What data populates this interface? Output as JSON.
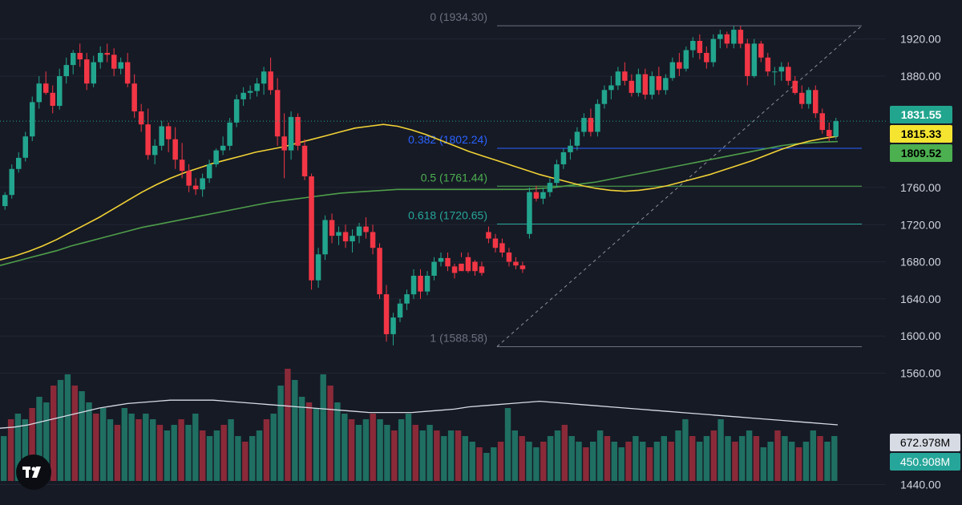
{
  "colors": {
    "background": "#161a25",
    "grid": "#222633",
    "up": "#22a58e",
    "down": "#f23645",
    "up_volume": "#1f6f62",
    "down_volume": "#8a2a39",
    "ma_fast": "#f2d235",
    "ma_slow": "#4e9e4a",
    "volume_ma": "#d6dbe4",
    "fib_0382": "#2962ff",
    "fib_0500": "#4caf50",
    "fib_0618": "#26a69a",
    "fib_extreme": "#6b7080",
    "axis_text": "#d1d4dc"
  },
  "chart_data": {
    "type": "candlestick",
    "y_axis": {
      "ticks": [
        1440,
        1560,
        1600,
        1640,
        1680,
        1720,
        1760,
        1880,
        1920
      ],
      "tick_labels": [
        "1440.00",
        "1560.00",
        "1600.00",
        "1640.00",
        "1680.00",
        "1720.00",
        "1760.00",
        "1880.00",
        "1920.00"
      ],
      "range": [
        1418,
        1962
      ]
    },
    "fibonacci": [
      {
        "ratio": "0",
        "price": 1934.3,
        "label": "0 (1934.30)",
        "color": "#6b7080"
      },
      {
        "ratio": "0.382",
        "price": 1802.24,
        "label": "0.382 (1802.24)",
        "color": "#2962ff"
      },
      {
        "ratio": "0.5",
        "price": 1761.44,
        "label": "0.5 (1761.44)",
        "color": "#4caf50"
      },
      {
        "ratio": "0.618",
        "price": 1720.65,
        "label": "0.618 (1720.65)",
        "color": "#26a69a"
      },
      {
        "ratio": "1",
        "price": 1588.58,
        "label": "1 (1588.58)",
        "color": "#6b7080"
      }
    ],
    "price_tags": [
      {
        "value": 1831.55,
        "label": "1831.55",
        "color": "#22a58e",
        "text_color": "#ffffff"
      },
      {
        "value": 1815.33,
        "label": "1815.33",
        "color": "#f5e430",
        "text_color": "#000000"
      },
      {
        "value": 1809.52,
        "label": "1809.52",
        "color": "#4caf50",
        "text_color": "#000000"
      }
    ],
    "volume_tags": [
      {
        "label": "672.978M",
        "color": "#d6dbe4",
        "text_color": "#000000"
      },
      {
        "label": "450.908M",
        "color": "#26a69a",
        "text_color": "#ffffff"
      }
    ],
    "candles": [
      [
        1740,
        1755,
        1736,
        1752
      ],
      [
        1752,
        1785,
        1748,
        1780
      ],
      [
        1780,
        1798,
        1776,
        1792
      ],
      [
        1792,
        1820,
        1788,
        1815
      ],
      [
        1815,
        1858,
        1810,
        1852
      ],
      [
        1852,
        1880,
        1845,
        1872
      ],
      [
        1872,
        1885,
        1860,
        1862
      ],
      [
        1862,
        1870,
        1840,
        1848
      ],
      [
        1848,
        1888,
        1844,
        1880
      ],
      [
        1880,
        1900,
        1872,
        1892
      ],
      [
        1892,
        1908,
        1882,
        1905
      ],
      [
        1905,
        1915,
        1890,
        1898
      ],
      [
        1898,
        1905,
        1865,
        1872
      ],
      [
        1872,
        1902,
        1868,
        1895
      ],
      [
        1895,
        1912,
        1888,
        1905
      ],
      [
        1905,
        1915,
        1895,
        1903
      ],
      [
        1903,
        1910,
        1880,
        1888
      ],
      [
        1888,
        1900,
        1882,
        1895
      ],
      [
        1895,
        1905,
        1868,
        1872
      ],
      [
        1872,
        1882,
        1835,
        1842
      ],
      [
        1842,
        1850,
        1820,
        1828
      ],
      [
        1828,
        1845,
        1790,
        1795
      ],
      [
        1795,
        1812,
        1785,
        1805
      ],
      [
        1805,
        1832,
        1800,
        1826
      ],
      [
        1826,
        1830,
        1798,
        1812
      ],
      [
        1812,
        1825,
        1780,
        1790
      ],
      [
        1790,
        1808,
        1770,
        1778
      ],
      [
        1778,
        1785,
        1755,
        1762
      ],
      [
        1762,
        1770,
        1752,
        1758
      ],
      [
        1758,
        1775,
        1750,
        1770
      ],
      [
        1770,
        1790,
        1765,
        1785
      ],
      [
        1785,
        1802,
        1782,
        1800
      ],
      [
        1800,
        1815,
        1795,
        1805
      ],
      [
        1805,
        1835,
        1800,
        1830
      ],
      [
        1830,
        1860,
        1825,
        1855
      ],
      [
        1855,
        1868,
        1848,
        1862
      ],
      [
        1862,
        1870,
        1855,
        1864
      ],
      [
        1864,
        1878,
        1858,
        1872
      ],
      [
        1872,
        1890,
        1860,
        1885
      ],
      [
        1885,
        1900,
        1860,
        1865
      ],
      [
        1865,
        1878,
        1805,
        1815
      ],
      [
        1815,
        1840,
        1770,
        1800
      ],
      [
        1800,
        1842,
        1790,
        1836
      ],
      [
        1836,
        1840,
        1800,
        1805
      ],
      [
        1805,
        1812,
        1768,
        1772
      ],
      [
        1772,
        1775,
        1650,
        1660
      ],
      [
        1660,
        1695,
        1652,
        1688
      ],
      [
        1688,
        1730,
        1682,
        1725
      ],
      [
        1725,
        1732,
        1700,
        1708
      ],
      [
        1708,
        1718,
        1698,
        1712
      ],
      [
        1712,
        1720,
        1695,
        1702
      ],
      [
        1702,
        1715,
        1690,
        1708
      ],
      [
        1708,
        1722,
        1700,
        1718
      ],
      [
        1718,
        1728,
        1705,
        1712
      ],
      [
        1712,
        1720,
        1688,
        1695
      ],
      [
        1695,
        1700,
        1640,
        1645
      ],
      [
        1645,
        1655,
        1594,
        1602
      ],
      [
        1602,
        1625,
        1590,
        1620
      ],
      [
        1620,
        1640,
        1615,
        1635
      ],
      [
        1635,
        1650,
        1628,
        1645
      ],
      [
        1645,
        1672,
        1640,
        1665
      ],
      [
        1665,
        1672,
        1640,
        1648
      ],
      [
        1648,
        1670,
        1644,
        1665
      ],
      [
        1665,
        1685,
        1660,
        1680
      ],
      [
        1680,
        1690,
        1675,
        1684
      ],
      [
        1684,
        1690,
        1670,
        1675
      ],
      [
        1675,
        1678,
        1662,
        1668
      ]
    ],
    "candles_right": [
      [
        1678,
        1685,
        1690,
        1670
      ],
      [
        1685,
        1690,
        1668,
        1670
      ],
      [
        1680,
        1682,
        1665,
        1670
      ],
      [
        1675,
        1680,
        1665,
        1668
      ],
      [
        1712,
        1718,
        1700,
        1705
      ],
      [
        1705,
        1710,
        1690,
        1695
      ],
      [
        1700,
        1705,
        1685,
        1690
      ],
      [
        1690,
        1695,
        1675,
        1680
      ],
      [
        1680,
        1685,
        1672,
        1676
      ],
      [
        1676,
        1680,
        1668,
        1672
      ],
      [
        1710,
        1760,
        1705,
        1755
      ],
      [
        1755,
        1762,
        1745,
        1748
      ],
      [
        1748,
        1760,
        1742,
        1755
      ],
      [
        1755,
        1770,
        1750,
        1765
      ],
      [
        1765,
        1790,
        1760,
        1785
      ],
      [
        1785,
        1802,
        1780,
        1798
      ],
      [
        1798,
        1812,
        1790,
        1805
      ],
      [
        1805,
        1825,
        1800,
        1820
      ],
      [
        1820,
        1840,
        1815,
        1835
      ],
      [
        1835,
        1845,
        1815,
        1820
      ],
      [
        1820,
        1855,
        1815,
        1850
      ],
      [
        1850,
        1870,
        1845,
        1865
      ],
      [
        1865,
        1880,
        1855,
        1870
      ],
      [
        1870,
        1890,
        1865,
        1885
      ],
      [
        1885,
        1895,
        1870,
        1875
      ],
      [
        1875,
        1882,
        1858,
        1862
      ],
      [
        1862,
        1888,
        1858,
        1882
      ],
      [
        1882,
        1888,
        1855,
        1860
      ],
      [
        1860,
        1885,
        1855,
        1880
      ],
      [
        1880,
        1890,
        1860,
        1865
      ],
      [
        1865,
        1882,
        1860,
        1878
      ],
      [
        1878,
        1900,
        1875,
        1895
      ],
      [
        1895,
        1905,
        1880,
        1888
      ],
      [
        1888,
        1912,
        1885,
        1908
      ],
      [
        1908,
        1922,
        1900,
        1918
      ],
      [
        1918,
        1925,
        1898,
        1905
      ],
      [
        1905,
        1912,
        1888,
        1895
      ],
      [
        1895,
        1925,
        1890,
        1920
      ],
      [
        1920,
        1930,
        1910,
        1925
      ],
      [
        1925,
        1928,
        1910,
        1915
      ],
      [
        1915,
        1934,
        1910,
        1930
      ],
      [
        1930,
        1934,
        1910,
        1915
      ],
      [
        1915,
        1920,
        1870,
        1880
      ],
      [
        1880,
        1920,
        1878,
        1915
      ],
      [
        1915,
        1918,
        1895,
        1900
      ],
      [
        1900,
        1905,
        1880,
        1885
      ],
      [
        1885,
        1890,
        1870,
        1885
      ],
      [
        1885,
        1895,
        1875,
        1890
      ],
      [
        1890,
        1895,
        1870,
        1875
      ],
      [
        1875,
        1880,
        1860,
        1862
      ],
      [
        1862,
        1870,
        1845,
        1850
      ],
      [
        1850,
        1868,
        1845,
        1865
      ],
      [
        1865,
        1870,
        1835,
        1840
      ],
      [
        1840,
        1845,
        1818,
        1822
      ],
      [
        1822,
        1830,
        1810,
        1815
      ],
      [
        1815,
        1835,
        1812,
        1831.55
      ]
    ],
    "ma_fast": [
      1682,
      1686,
      1691,
      1697,
      1704,
      1712,
      1720,
      1728,
      1737,
      1746,
      1755,
      1763,
      1770,
      1776,
      1781,
      1786,
      1790,
      1794,
      1798,
      1801,
      1804,
      1808,
      1812,
      1816,
      1820,
      1824,
      1826,
      1828,
      1826,
      1822,
      1817,
      1811,
      1805,
      1799,
      1794,
      1789,
      1784,
      1779,
      1774,
      1770,
      1766,
      1762,
      1759,
      1757,
      1756,
      1757,
      1759,
      1762,
      1766,
      1770,
      1774,
      1779,
      1784,
      1789,
      1795,
      1801,
      1806,
      1810,
      1813,
      1815.33
    ],
    "ma_slow": [
      1676,
      1680,
      1684,
      1688,
      1692,
      1697,
      1701,
      1705,
      1709,
      1713,
      1717,
      1720,
      1723,
      1726,
      1729,
      1732,
      1735,
      1738,
      1741,
      1744,
      1746,
      1748,
      1750,
      1752,
      1754,
      1755,
      1756,
      1757,
      1758,
      1758,
      1758,
      1758,
      1758,
      1758,
      1758,
      1758,
      1758,
      1758,
      1759,
      1760,
      1762,
      1764,
      1766,
      1769,
      1772,
      1775,
      1778,
      1781,
      1784,
      1787,
      1790,
      1793,
      1796,
      1799,
      1802,
      1805,
      1807,
      1808,
      1809,
      1809.52
    ],
    "volume": [
      40,
      55,
      60,
      55,
      65,
      75,
      70,
      85,
      90,
      95,
      85,
      80,
      70,
      60,
      65,
      55,
      50,
      65,
      60,
      55,
      60,
      55,
      50,
      45,
      50,
      55,
      50,
      60,
      45,
      40,
      45,
      50,
      55,
      40,
      35,
      40,
      45,
      55,
      60,
      85,
      100,
      90,
      75,
      70,
      65,
      95,
      85,
      70,
      60,
      55,
      50,
      55,
      60,
      55,
      50,
      45,
      55,
      60,
      50,
      45,
      50,
      45,
      40,
      45,
      45,
      40,
      35,
      30,
      25,
      30,
      35,
      65,
      45,
      40,
      35,
      30,
      35,
      40,
      45,
      50,
      40,
      35,
      30,
      35,
      45,
      40,
      35,
      30,
      35,
      40,
      35,
      30,
      35,
      40,
      35,
      45,
      55,
      40,
      35,
      40,
      45,
      55,
      40,
      35,
      40,
      45,
      40,
      30,
      35,
      45,
      40,
      35,
      30,
      35,
      45,
      40,
      35,
      40
    ],
    "volume_ma": [
      47,
      48,
      50,
      53,
      56,
      59,
      62,
      65,
      67,
      69,
      70,
      71,
      72,
      72,
      72,
      72,
      71,
      70,
      69,
      68,
      67,
      66,
      65,
      64,
      63,
      62,
      61,
      61,
      61,
      61,
      62,
      63,
      64,
      66,
      67,
      68,
      69,
      70,
      71,
      70,
      69,
      68,
      67,
      66,
      65,
      64,
      63,
      62,
      61,
      60,
      59,
      58,
      57,
      56,
      55,
      54,
      53,
      52,
      51,
      50
    ]
  }
}
